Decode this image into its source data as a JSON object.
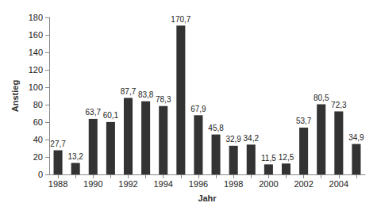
{
  "chart_data": {
    "type": "bar",
    "categories": [
      "1988",
      null,
      "1990",
      null,
      "1992",
      null,
      "1994",
      null,
      "1996",
      null,
      "1998",
      null,
      "2000",
      null,
      "2002",
      null,
      "2004",
      null
    ],
    "values": [
      27.7,
      13.2,
      63.7,
      60.1,
      87.7,
      83.8,
      78.3,
      170.7,
      67.9,
      45.8,
      32.9,
      34.2,
      11.5,
      12.5,
      53.7,
      80.5,
      72.3,
      34.9
    ],
    "value_labels": [
      "27,7",
      "13,2",
      "63,7",
      "60,1",
      "87,7",
      "83,8",
      "78,3",
      "170,7",
      "67,9",
      "45,8",
      "32,9",
      "34,2",
      "11,5",
      "12,5",
      "53,7",
      "80,5",
      "72,3",
      "34,9"
    ],
    "color": "#333333",
    "xlabel": "Jahr",
    "ylabel": "Anstieg",
    "ylim": [
      0,
      180
    ],
    "yticks": [
      0,
      20,
      40,
      60,
      80,
      100,
      120,
      140,
      160,
      180
    ],
    "grid": false,
    "data_labels": true
  }
}
